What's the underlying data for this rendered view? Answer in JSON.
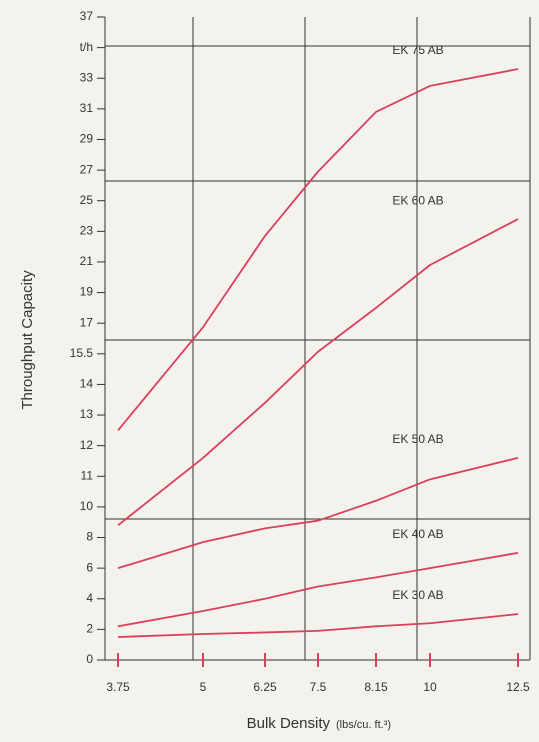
{
  "chart_data": {
    "type": "line",
    "y_label": "Throughput Capacity",
    "x_label": "Bulk Density",
    "x_unit": "(lbs/cu. ft.³)",
    "x": [
      3.75,
      5,
      6.25,
      7.5,
      8.15,
      10,
      12.5
    ],
    "xlim": [
      3.75,
      12.5
    ],
    "xticks": [
      3.75,
      5,
      6.25,
      7.5,
      8.15,
      10,
      12.5
    ],
    "ylim": [
      0,
      37
    ],
    "yticks": [
      0,
      2,
      4,
      6,
      8,
      10,
      11,
      12,
      13,
      14,
      15.5,
      17,
      19,
      21,
      23,
      25,
      27,
      29,
      31,
      33,
      {
        "value": 35,
        "label": "t/h"
      },
      37
    ],
    "series": [
      {
        "name": "EK 75 AB",
        "color": "#d9405c",
        "values": [
          12.5,
          16.8,
          22.7,
          26.9,
          30.8,
          32.5,
          33.6
        ]
      },
      {
        "name": "EK 60 AB",
        "color": "#d9405c",
        "values": [
          8.8,
          11.6,
          13.4,
          15.6,
          18.0,
          20.8,
          23.8
        ]
      },
      {
        "name": "EK 50 AB",
        "color": "#d9405c",
        "values": [
          6.0,
          7.7,
          8.6,
          9.1,
          10.2,
          10.9,
          11.6
        ]
      },
      {
        "name": "EK 40 AB",
        "color": "#d9405c",
        "values": [
          2.2,
          3.2,
          4.0,
          4.8,
          5.4,
          6.0,
          7.0
        ]
      },
      {
        "name": "EK 30 AB",
        "color": "#d9405c",
        "values": [
          1.5,
          1.7,
          1.8,
          1.9,
          2.2,
          2.4,
          3.0
        ]
      }
    ]
  }
}
